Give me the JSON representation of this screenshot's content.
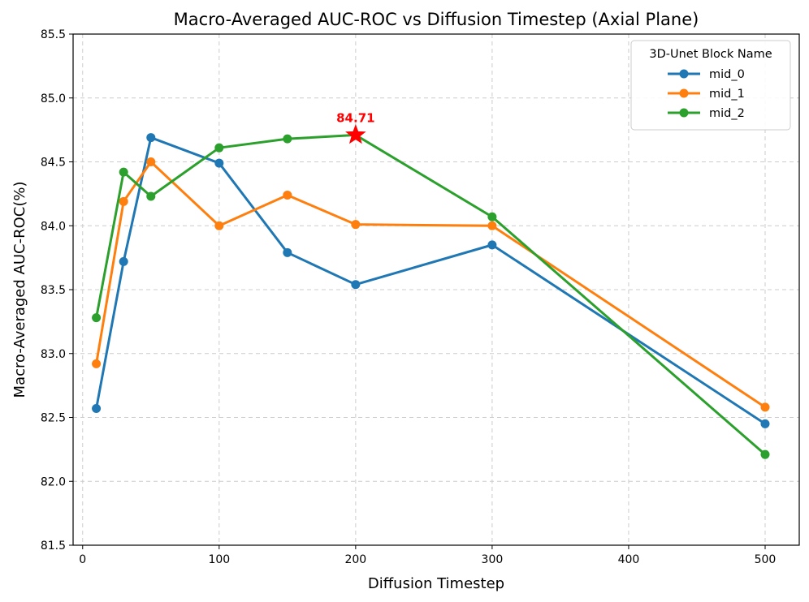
{
  "chart_data": {
    "type": "line",
    "title": "Macro-Averaged AUC-ROC vs Diffusion Timestep (Axial Plane)",
    "xlabel": "Diffusion Timestep",
    "ylabel": "Macro-Averaged AUC-ROC(%)",
    "xlim": [
      -7,
      525
    ],
    "ylim": [
      81.5,
      85.5
    ],
    "xticks": [
      0,
      100,
      200,
      300,
      400,
      500
    ],
    "yticks": [
      81.5,
      82.0,
      82.5,
      83.0,
      83.5,
      84.0,
      84.5,
      85.0,
      85.5
    ],
    "xtick_labels": [
      "0",
      "100",
      "200",
      "300",
      "400",
      "500"
    ],
    "ytick_labels": [
      "81.5",
      "82.0",
      "82.5",
      "83.0",
      "83.5",
      "84.0",
      "84.5",
      "85.0",
      "85.5"
    ],
    "grid": true,
    "grid_style": "dashed",
    "x": [
      10,
      30,
      50,
      100,
      150,
      200,
      300,
      500
    ],
    "series": [
      {
        "name": "mid_0",
        "color": "#1f77b4",
        "values": [
          82.57,
          83.72,
          84.69,
          84.49,
          83.79,
          83.54,
          83.85,
          82.45
        ]
      },
      {
        "name": "mid_1",
        "color": "#ff7f0e",
        "values": [
          82.92,
          84.19,
          84.5,
          84.0,
          84.24,
          84.01,
          84.0,
          82.58
        ]
      },
      {
        "name": "mid_2",
        "color": "#2ca02c",
        "values": [
          83.28,
          84.42,
          84.23,
          84.61,
          84.68,
          84.71,
          84.07,
          82.21
        ]
      }
    ],
    "legend": {
      "title": "3D-Unet Block Name",
      "placement": "top-right"
    },
    "annotation": {
      "text": "84.71",
      "x": 200,
      "y": 84.71,
      "marker": "star",
      "color": "#ff0000"
    }
  }
}
